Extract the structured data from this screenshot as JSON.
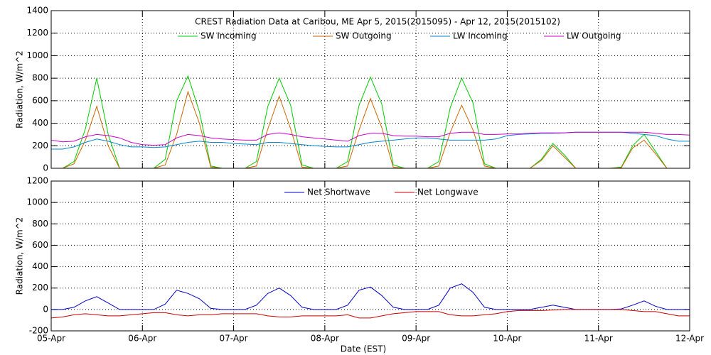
{
  "chart_data": [
    {
      "type": "line",
      "title": "CREST Radiation Data at Caribou, ME   Apr  5, 2015(2015095) - Apr 12, 2015(2015102)",
      "y_label": "Radiation, W/m^2",
      "x": [
        0,
        0.125,
        0.25,
        0.375,
        0.5,
        0.625,
        0.75,
        0.875,
        1,
        1.125,
        1.25,
        1.375,
        1.5,
        1.625,
        1.75,
        1.875,
        2,
        2.125,
        2.25,
        2.375,
        2.5,
        2.625,
        2.75,
        2.875,
        3,
        3.125,
        3.25,
        3.375,
        3.5,
        3.625,
        3.75,
        3.875,
        4,
        4.125,
        4.25,
        4.375,
        4.5,
        4.625,
        4.75,
        4.875,
        5,
        5.125,
        5.25,
        5.375,
        5.5,
        5.625,
        5.75,
        5.875,
        6,
        6.125,
        6.25,
        6.375,
        6.5,
        6.625,
        6.75,
        6.875,
        7
      ],
      "xlim": [
        0,
        7
      ],
      "xticks": [
        0,
        1,
        2,
        3,
        4,
        5,
        6,
        7
      ],
      "ylim": [
        0,
        1400
      ],
      "yticks": [
        0,
        200,
        400,
        600,
        800,
        1000,
        1200,
        1400
      ],
      "grid": true,
      "series": [
        {
          "name": "SW Incoming",
          "color": "#00cc00",
          "values": [
            0,
            0,
            60,
            350,
            800,
            300,
            0,
            0,
            0,
            0,
            80,
            600,
            820,
            500,
            20,
            0,
            0,
            0,
            60,
            550,
            800,
            560,
            30,
            0,
            0,
            0,
            60,
            560,
            810,
            570,
            30,
            0,
            0,
            0,
            60,
            540,
            800,
            580,
            40,
            0,
            0,
            0,
            0,
            80,
            220,
            120,
            0,
            0,
            0,
            0,
            10,
            200,
            300,
            150,
            0,
            0,
            0
          ]
        },
        {
          "name": "SW Outgoing",
          "color": "#cc6600",
          "values": [
            0,
            0,
            40,
            250,
            550,
            200,
            0,
            0,
            0,
            0,
            30,
            300,
            680,
            400,
            10,
            0,
            0,
            0,
            20,
            350,
            640,
            350,
            10,
            0,
            0,
            0,
            20,
            340,
            620,
            360,
            10,
            0,
            0,
            0,
            20,
            320,
            560,
            340,
            20,
            0,
            0,
            0,
            0,
            70,
            200,
            100,
            0,
            0,
            0,
            0,
            5,
            180,
            250,
            130,
            0,
            0,
            0
          ]
        },
        {
          "name": "LW Incoming",
          "color": "#0088cc",
          "values": [
            170,
            170,
            190,
            230,
            260,
            240,
            210,
            190,
            190,
            185,
            190,
            210,
            230,
            240,
            230,
            230,
            220,
            215,
            210,
            230,
            230,
            220,
            210,
            200,
            195,
            190,
            190,
            210,
            230,
            240,
            250,
            260,
            270,
            270,
            260,
            250,
            250,
            250,
            250,
            260,
            290,
            300,
            305,
            310,
            310,
            315,
            320,
            320,
            320,
            320,
            320,
            310,
            300,
            290,
            260,
            240,
            240
          ]
        },
        {
          "name": "LW Outgoing",
          "color": "#cc00cc",
          "values": [
            250,
            235,
            240,
            280,
            300,
            290,
            270,
            230,
            210,
            205,
            210,
            270,
            300,
            290,
            270,
            260,
            255,
            250,
            250,
            300,
            315,
            300,
            280,
            270,
            260,
            250,
            240,
            290,
            310,
            310,
            290,
            285,
            285,
            280,
            280,
            310,
            320,
            320,
            300,
            300,
            305,
            305,
            310,
            315,
            315,
            315,
            320,
            320,
            320,
            320,
            320,
            320,
            320,
            310,
            300,
            300,
            295
          ]
        }
      ]
    },
    {
      "type": "line",
      "y_label": "Radiation, W/m^2",
      "x_label": "Date (EST)",
      "x": [
        0,
        0.125,
        0.25,
        0.375,
        0.5,
        0.625,
        0.75,
        0.875,
        1,
        1.125,
        1.25,
        1.375,
        1.5,
        1.625,
        1.75,
        1.875,
        2,
        2.125,
        2.25,
        2.375,
        2.5,
        2.625,
        2.75,
        2.875,
        3,
        3.125,
        3.25,
        3.375,
        3.5,
        3.625,
        3.75,
        3.875,
        4,
        4.125,
        4.25,
        4.375,
        4.5,
        4.625,
        4.75,
        4.875,
        5,
        5.125,
        5.25,
        5.375,
        5.5,
        5.625,
        5.75,
        5.875,
        6,
        6.125,
        6.25,
        6.375,
        6.5,
        6.625,
        6.75,
        6.875,
        7
      ],
      "xlim": [
        0,
        7
      ],
      "xticks": [
        {
          "value": 0,
          "label": "05-Apr"
        },
        {
          "value": 1,
          "label": "06-Apr"
        },
        {
          "value": 2,
          "label": "07-Apr"
        },
        {
          "value": 3,
          "label": "08-Apr"
        },
        {
          "value": 4,
          "label": "09-Apr"
        },
        {
          "value": 5,
          "label": "10-Apr"
        },
        {
          "value": 6,
          "label": "11-Apr"
        },
        {
          "value": 7,
          "label": "12-Apr"
        }
      ],
      "ylim": [
        -200,
        1200
      ],
      "yticks": [
        -200,
        0,
        200,
        400,
        600,
        800,
        1000,
        1200
      ],
      "grid": true,
      "series": [
        {
          "name": "Net Shortwave",
          "color": "#0000cc",
          "values": [
            0,
            0,
            20,
            80,
            120,
            60,
            0,
            0,
            0,
            0,
            50,
            180,
            150,
            100,
            10,
            0,
            0,
            0,
            40,
            150,
            200,
            130,
            20,
            0,
            0,
            0,
            40,
            180,
            210,
            130,
            20,
            0,
            0,
            0,
            40,
            200,
            240,
            160,
            20,
            0,
            0,
            0,
            0,
            20,
            40,
            20,
            0,
            0,
            0,
            0,
            5,
            40,
            80,
            30,
            0,
            0,
            0
          ]
        },
        {
          "name": "Net Longwave",
          "color": "#cc0000",
          "values": [
            -80,
            -70,
            -50,
            -40,
            -50,
            -60,
            -60,
            -50,
            -40,
            -30,
            -30,
            -50,
            -60,
            -50,
            -50,
            -40,
            -40,
            -40,
            -40,
            -60,
            -70,
            -70,
            -60,
            -60,
            -60,
            -60,
            -50,
            -80,
            -80,
            -60,
            -40,
            -30,
            -20,
            -20,
            -20,
            -50,
            -60,
            -60,
            -50,
            -40,
            -20,
            -10,
            -10,
            -10,
            -5,
            0,
            0,
            0,
            0,
            0,
            0,
            -10,
            -20,
            -20,
            -40,
            -60,
            -60
          ]
        }
      ]
    }
  ]
}
